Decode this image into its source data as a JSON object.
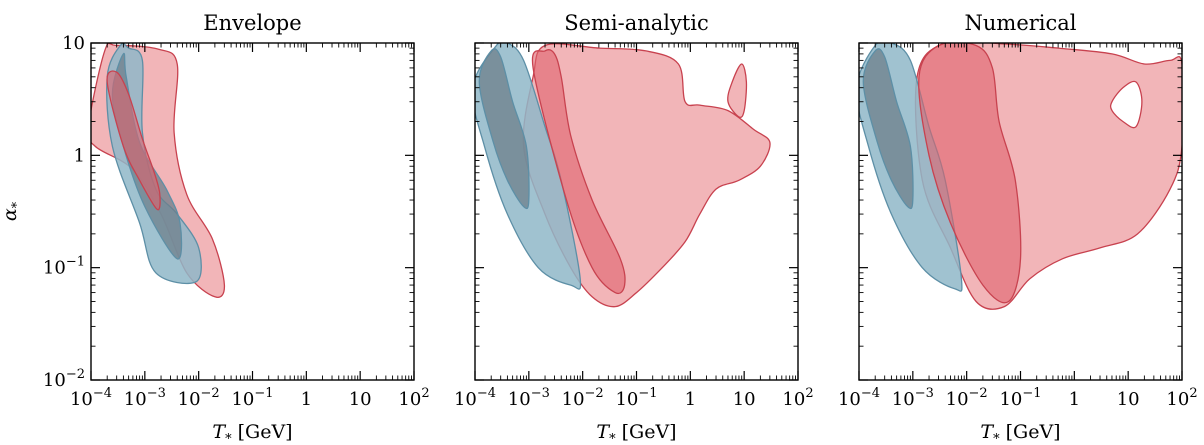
{
  "colors": {
    "blue_fill": "#8fb7c8",
    "blue_edge": "#5d8fa6",
    "red_light": "#f0a8ac",
    "red_dark": "#e0626c",
    "red_edge": "#c8424f",
    "frame": "#000000"
  },
  "chart_data": [
    {
      "type": "contour",
      "title": "Envelope",
      "xlabel": "T* [GeV]",
      "ylabel": "α*",
      "xscale": "log",
      "yscale": "log",
      "xlim": [
        0.0001,
        100
      ],
      "ylim": [
        0.01,
        10
      ],
      "xticks": [
        "10−4",
        "10−3",
        "10−2",
        "10−1",
        "1",
        "10",
        "102"
      ],
      "yticks": [
        "10−2",
        "10−1",
        "1",
        "10"
      ],
      "series": [
        {
          "color": "red",
          "level": "outer",
          "x": [
            9e-05,
            0.00018,
            0.0003,
            0.0018,
            0.004,
            0.0035,
            0.006,
            0.018,
            0.03,
            0.02,
            0.006,
            0.002,
            0.0006,
            0.00012
          ],
          "y": [
            1.8,
            8.5,
            9.5,
            8.8,
            6.5,
            1.6,
            0.45,
            0.18,
            0.07,
            0.055,
            0.09,
            0.3,
            0.75,
            1.2
          ]
        },
        {
          "color": "blue",
          "level": "outer",
          "x": [
            0.0002,
            0.00035,
            0.0005,
            0.0009,
            0.0009,
            0.0016,
            0.004,
            0.01,
            0.009,
            0.0016,
            0.0008,
            0.00025
          ],
          "y": [
            5,
            9.5,
            9,
            7,
            1.6,
            0.5,
            0.3,
            0.15,
            0.075,
            0.09,
            0.25,
            1.2
          ]
        },
        {
          "color": "blue",
          "level": "inner",
          "x": [
            0.00025,
            0.0004,
            0.00045,
            0.0008,
            0.0025,
            0.0045,
            0.004,
            0.001,
            0.0004
          ],
          "y": [
            3.5,
            8,
            5,
            1.3,
            0.5,
            0.25,
            0.12,
            0.35,
            1.2
          ]
        },
        {
          "color": "red",
          "level": "inner",
          "x": [
            0.0002,
            0.0003,
            0.0005,
            0.0009,
            0.0015,
            0.0019,
            0.0017,
            0.0008,
            0.0004
          ],
          "y": [
            4.5,
            5.5,
            3.5,
            1.4,
            0.7,
            0.45,
            0.33,
            0.6,
            1.2
          ]
        }
      ]
    },
    {
      "type": "contour",
      "title": "Semi-analytic",
      "xlabel": "T* [GeV]",
      "xscale": "log",
      "yscale": "log",
      "xlim": [
        0.0001,
        100
      ],
      "ylim": [
        0.01,
        10
      ],
      "xticks": [
        "10−4",
        "10−3",
        "10−2",
        "10−1",
        "1",
        "10",
        "102"
      ],
      "series": [
        {
          "color": "red",
          "level": "outer",
          "x": [
            0.0012,
            0.002,
            0.02,
            0.15,
            0.6,
            0.8,
            1.5,
            5,
            15,
            30,
            20,
            8,
            3,
            1.5,
            0.8,
            0.3,
            0.1,
            0.04,
            0.015,
            0.006,
            0.002,
            0.0008
          ],
          "y": [
            5,
            9.5,
            9,
            8.5,
            6.5,
            3,
            2.8,
            2.5,
            1.7,
            1.3,
            0.8,
            0.6,
            0.5,
            0.3,
            0.17,
            0.1,
            0.06,
            0.045,
            0.055,
            0.1,
            0.3,
            1.2
          ]
        },
        {
          "color": "red",
          "level": "island",
          "x": [
            6,
            9,
            11,
            10,
            8,
            5
          ],
          "y": [
            4.5,
            6.5,
            4.5,
            2.5,
            2.2,
            3
          ]
        },
        {
          "color": "blue",
          "level": "outer",
          "x": [
            9e-05,
            0.00025,
            0.0004,
            0.0008,
            0.002,
            0.004,
            0.009,
            0.006,
            0.0015,
            0.0004,
            0.00015
          ],
          "y": [
            4,
            9.5,
            10,
            7,
            1.8,
            0.6,
            0.08,
            0.07,
            0.1,
            0.3,
            1.2
          ]
        },
        {
          "color": "blue",
          "level": "inner",
          "x": [
            0.00012,
            0.0002,
            0.0003,
            0.0005,
            0.0009,
            0.001,
            0.0008,
            0.0004,
            0.00022
          ],
          "y": [
            4.5,
            8.5,
            7.5,
            3,
            1.2,
            0.4,
            0.35,
            0.6,
            1.3
          ]
        },
        {
          "color": "red",
          "level": "inner",
          "x": [
            0.0012,
            0.002,
            0.003,
            0.004,
            0.006,
            0.015,
            0.05,
            0.06,
            0.04,
            0.015,
            0.005
          ],
          "y": [
            6,
            8.5,
            8,
            5,
            1.5,
            0.4,
            0.12,
            0.07,
            0.06,
            0.1,
            0.4
          ]
        }
      ]
    },
    {
      "type": "contour",
      "title": "Numerical",
      "xlabel": "T* [GeV]",
      "xscale": "log",
      "yscale": "log",
      "xlim": [
        0.0001,
        100
      ],
      "ylim": [
        0.01,
        10
      ],
      "xticks": [
        "10−4",
        "10−3",
        "10−2",
        "10−1",
        "1",
        "10",
        "102"
      ],
      "series": [
        {
          "color": "red",
          "level": "outer",
          "x": [
            0.0012,
            0.004,
            0.05,
            0.5,
            5,
            20,
            60,
            100,
            100,
            60,
            15,
            3,
            0.6,
            0.15,
            0.05,
            0.015,
            0.005,
            0.0015
          ],
          "y": [
            5,
            10,
            9.8,
            9,
            8,
            6.5,
            7,
            6.5,
            1.2,
            0.5,
            0.2,
            0.15,
            0.12,
            0.08,
            0.045,
            0.05,
            0.15,
            0.6
          ]
        },
        {
          "color": "white",
          "level": "hole",
          "x": [
            5,
            8,
            14,
            18,
            14,
            8,
            5
          ],
          "y": [
            3,
            4,
            4.5,
            3,
            1.8,
            2,
            2.5
          ]
        },
        {
          "color": "blue",
          "level": "outer",
          "x": [
            9e-05,
            0.0002,
            0.0004,
            0.0009,
            0.002,
            0.004,
            0.008,
            0.006,
            0.0015,
            0.0004,
            0.00015
          ],
          "y": [
            4,
            9.5,
            10,
            7,
            1.8,
            0.6,
            0.08,
            0.065,
            0.1,
            0.3,
            1.2
          ]
        },
        {
          "color": "blue",
          "level": "inner",
          "x": [
            0.00012,
            0.0002,
            0.0003,
            0.0005,
            0.0009,
            0.001,
            0.0008,
            0.0004,
            0.00022
          ],
          "y": [
            4.5,
            8.5,
            7.5,
            3,
            1.2,
            0.4,
            0.35,
            0.6,
            1.3
          ]
        },
        {
          "color": "red",
          "level": "inner",
          "x": [
            0.0013,
            0.003,
            0.015,
            0.03,
            0.04,
            0.08,
            0.1,
            0.06,
            0.02,
            0.005,
            0.002
          ],
          "y": [
            5,
            9.5,
            9.5,
            6,
            2,
            0.6,
            0.12,
            0.05,
            0.07,
            0.25,
            1
          ]
        }
      ]
    }
  ]
}
